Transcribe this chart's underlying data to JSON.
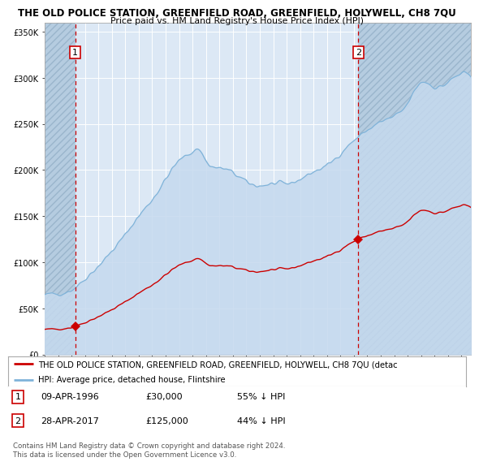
{
  "title": "THE OLD POLICE STATION, GREENFIELD ROAD, GREENFIELD, HOLYWELL, CH8 7QU",
  "subtitle": "Price paid vs. HM Land Registry's House Price Index (HPI)",
  "hpi_fill_color": "#c5d9ee",
  "hpi_line_color": "#7fb3d9",
  "property_color": "#cc0000",
  "plot_bg_color": "#dce8f5",
  "hatch_color": "#b8cfe0",
  "ylim": [
    0,
    360000
  ],
  "yticks": [
    0,
    50000,
    100000,
    150000,
    200000,
    250000,
    300000,
    350000
  ],
  "ytick_labels": [
    "£0",
    "£50K",
    "£100K",
    "£150K",
    "£200K",
    "£250K",
    "£300K",
    "£350K"
  ],
  "xmin": 1994.0,
  "xmax": 2025.7,
  "sale1_x": 1996.27,
  "sale1_y": 30000,
  "sale2_x": 2017.32,
  "sale2_y": 125000,
  "legend_line1": "THE OLD POLICE STATION, GREENFIELD ROAD, GREENFIELD, HOLYWELL, CH8 7QU (detac",
  "legend_line2": "HPI: Average price, detached house, Flintshire",
  "note1_num": "1",
  "note1_date": "09-APR-1996",
  "note1_price": "£30,000",
  "note1_hpi": "55% ↓ HPI",
  "note2_num": "2",
  "note2_date": "28-APR-2017",
  "note2_price": "£125,000",
  "note2_hpi": "44% ↓ HPI",
  "copyright": "Contains HM Land Registry data © Crown copyright and database right 2024.\nThis data is licensed under the Open Government Licence v3.0."
}
